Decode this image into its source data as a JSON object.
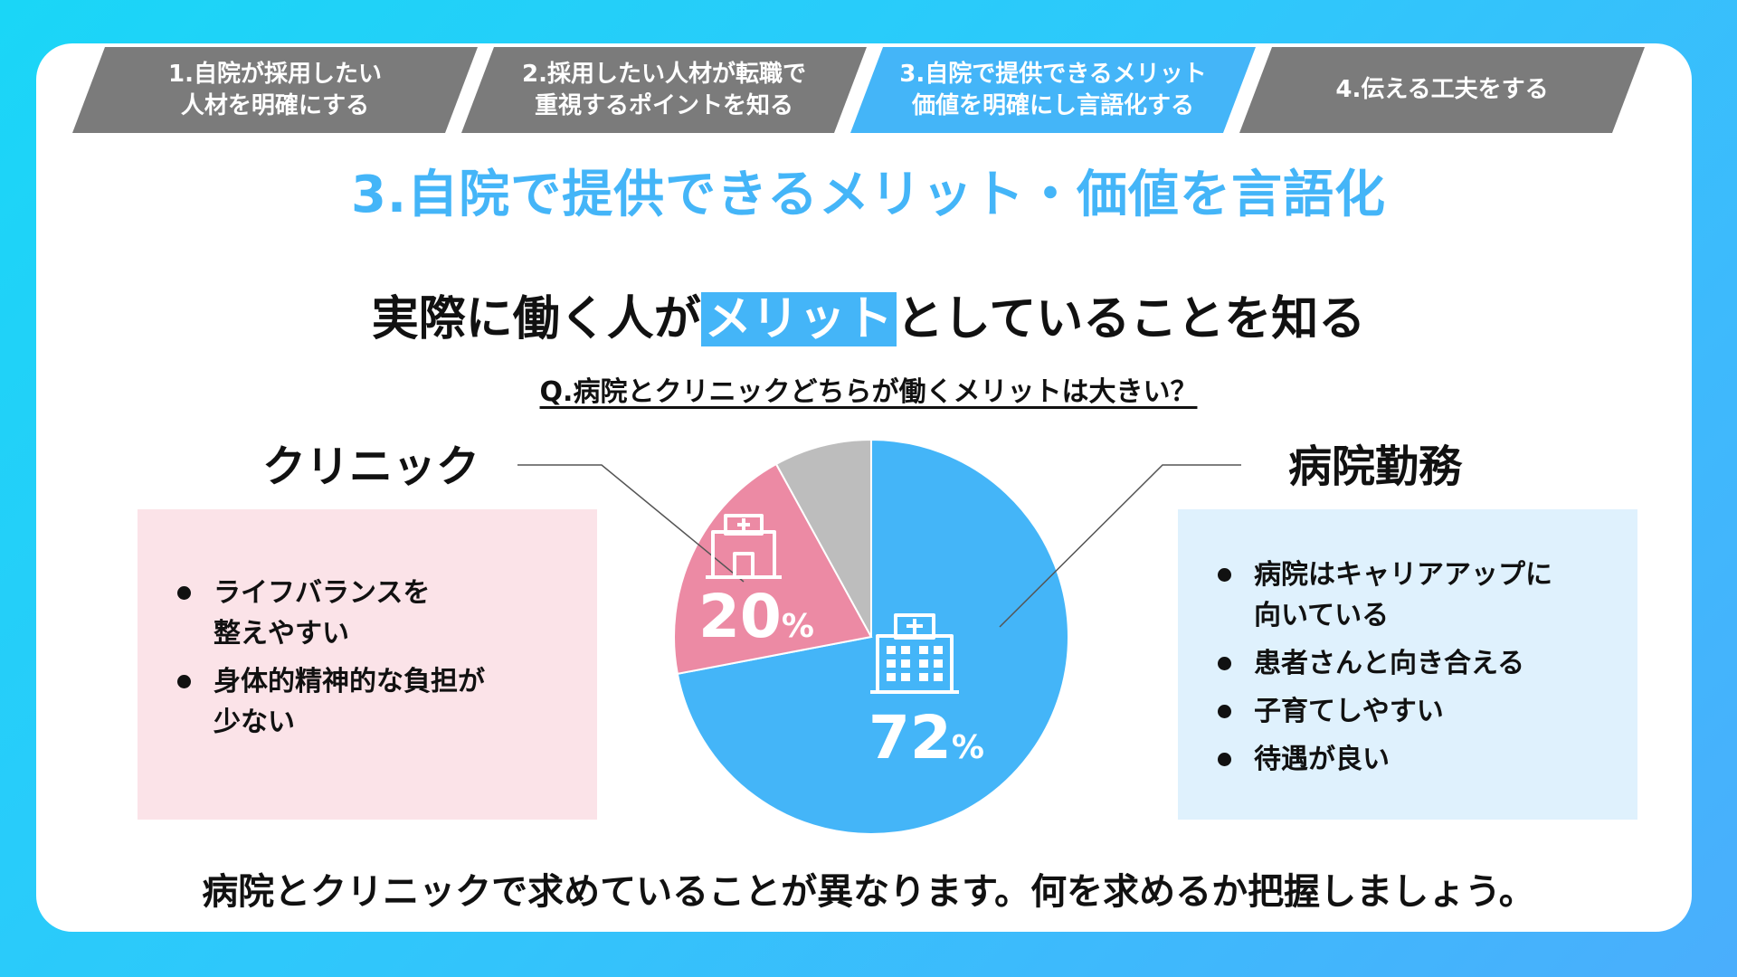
{
  "steps": [
    {
      "label": "1.自院が採用したい\n人材を明確にする"
    },
    {
      "label": "2.採用したい人材が転職で\n重視するポイントを知る"
    },
    {
      "label": "3.自院で提供できるメリット\n価値を明確にし言語化する"
    },
    {
      "label": "4.伝える工夫をする"
    }
  ],
  "section_title": "3.自院で提供できるメリット・価値を言語化",
  "headline": {
    "before": "実際に働く人が",
    "highlight": "メリット",
    "after": "としていることを知る"
  },
  "question": "Q.病院とクリニックどちらが働くメリットは大きい？",
  "clinic": {
    "label": "クリニック",
    "points": [
      "ライフバランスを\n整えやすい",
      "身体的精神的な負担が\n少ない"
    ]
  },
  "hospital": {
    "label": "病院勤務",
    "points": [
      "病院はキャリアアップに\n向いている",
      "患者さんと向き合える",
      "子育てしやすい",
      "待遇が良い"
    ]
  },
  "bottom_text": "病院とクリニックで求めていることが異なります。何を求めるか把握しましょう。",
  "colors": {
    "hospital": "#44b5f8",
    "clinic": "#ec8aa4",
    "other": "#bdbdbd",
    "accent": "#44b5f8"
  },
  "icons": {
    "clinic": "clinic-building-icon",
    "hospital": "hospital-building-icon"
  },
  "chart_data": {
    "type": "pie",
    "slices": [
      {
        "name": "病院勤務",
        "value": 72,
        "label_num": "72",
        "label_unit": "%"
      },
      {
        "name": "クリニック",
        "value": 20,
        "label_num": "20",
        "label_unit": "%"
      },
      {
        "name": "",
        "value": 8
      }
    ]
  }
}
